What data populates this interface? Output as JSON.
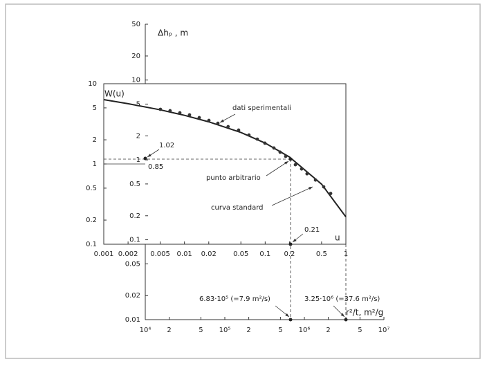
{
  "chart_data": [
    {
      "type": "scatter",
      "log_scale": true,
      "y_label": "Δhₚ , m",
      "x_label": "r²/t, m²/g",
      "x": [
        15500,
        20500,
        27200,
        36000,
        47700,
        63100,
        81800,
        110000,
        149000,
        201000,
        256000,
        319000,
        414000,
        496000,
        582000,
        771000,
        923000,
        1080000,
        1380000,
        1750000,
        2140000
      ],
      "y": [
        4.3,
        4.13,
        3.89,
        3.66,
        3.38,
        3.12,
        2.88,
        2.61,
        2.36,
        2.05,
        1.82,
        1.62,
        1.41,
        1.25,
        1.11,
        0.87,
        0.77,
        0.67,
        0.56,
        0.46,
        0.38
      ],
      "color": "#333333",
      "xlim": [
        10000,
        10000000
      ],
      "ylim": [
        0.01,
        50
      ],
      "xticks": [
        {
          "value": 10000,
          "label": "10⁴"
        },
        {
          "value": 20000,
          "label": "2"
        },
        {
          "value": 50000,
          "label": "5"
        },
        {
          "value": 100000,
          "label": "10⁵"
        },
        {
          "value": 200000,
          "label": "2"
        },
        {
          "value": 500000,
          "label": "5"
        },
        {
          "value": 1000000,
          "label": "10⁶"
        },
        {
          "value": 2000000,
          "label": "2"
        },
        {
          "value": 5000000,
          "label": "5"
        },
        {
          "value": 10000000,
          "label": "10⁷"
        }
      ],
      "yticks": [
        50,
        20,
        10,
        5,
        2,
        1,
        0.5,
        0.2,
        0.1,
        0.05,
        0.02,
        0.01
      ],
      "annotations": [
        "6.83·10⁵ (=7.9 m²/s)",
        "3.25·10⁶ (=37.6 m²/s)"
      ]
    },
    {
      "type": "line",
      "log_scale": true,
      "y_label": "W(u)",
      "x_label": "u",
      "x": [
        0.001,
        0.002,
        0.005,
        0.01,
        0.02,
        0.05,
        0.1,
        0.2,
        0.5,
        1
      ],
      "y": [
        6.33,
        5.64,
        4.73,
        4.04,
        3.35,
        2.47,
        1.82,
        1.22,
        0.56,
        0.219
      ],
      "color": "#222222",
      "xlim": [
        0.001,
        1
      ],
      "ylim": [
        0.1,
        10
      ],
      "xticks": [
        0.001,
        0.002,
        0.005,
        0.01,
        0.02,
        0.05,
        0.1,
        0.2,
        0.5,
        1
      ],
      "yticks": [
        10,
        5,
        2,
        1,
        0.5,
        0.2,
        0.1
      ],
      "annotations": [
        "dati sperimentali",
        "punto arbitrario",
        "curva standard",
        "1.02",
        "0.85",
        "0.21"
      ]
    }
  ]
}
